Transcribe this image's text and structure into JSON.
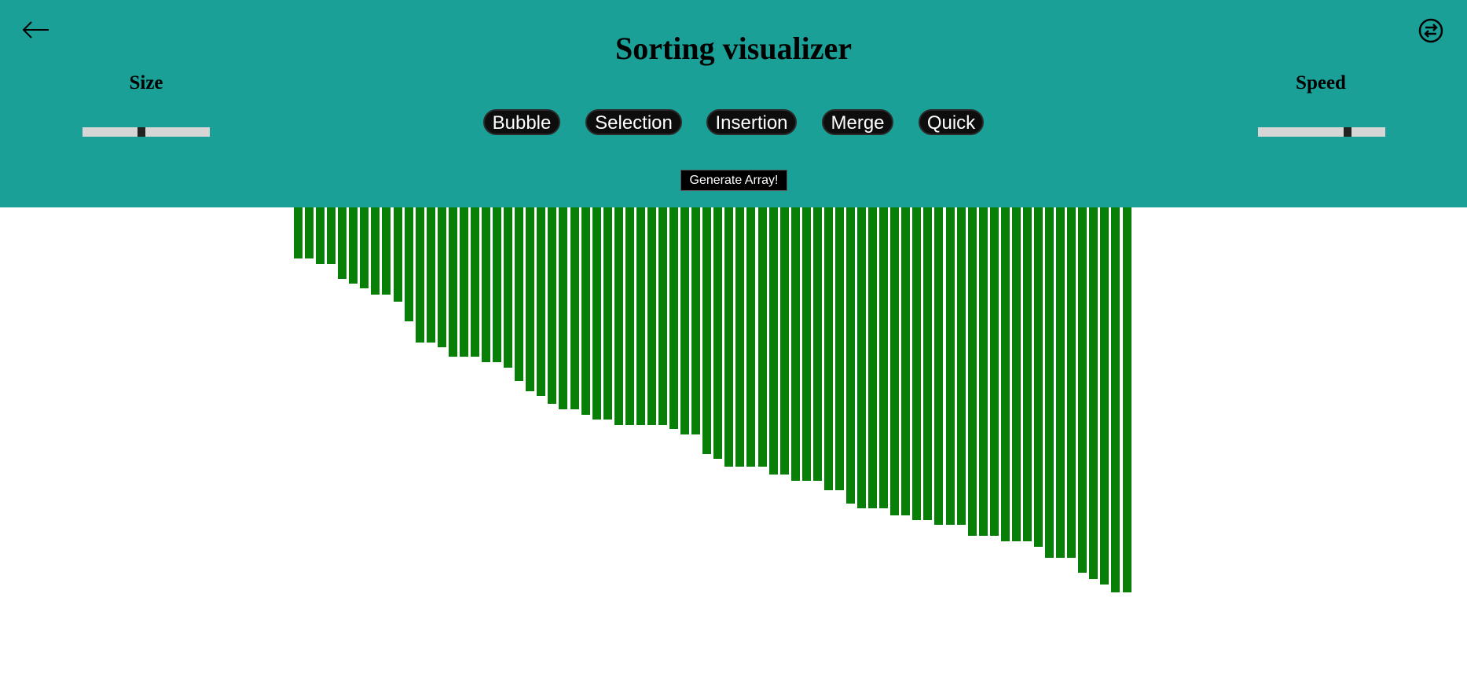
{
  "header": {
    "title": "Sorting visualizer",
    "back_icon": "arrow-left-icon",
    "swap_icon": "swap-arrows-icon",
    "background_color": "#1ba097"
  },
  "controls": {
    "size": {
      "label": "Size",
      "value_fraction": 0.46
    },
    "speed": {
      "label": "Speed",
      "value_fraction": 0.72
    },
    "algorithms": [
      "Bubble",
      "Selection",
      "Insertion",
      "Merge",
      "Quick"
    ],
    "generate_label": "Generate Array!"
  },
  "array": {
    "bar_color": "#088008",
    "values": [
      65,
      65,
      72,
      72,
      91,
      97,
      103,
      111,
      111,
      120,
      145,
      172,
      172,
      178,
      190,
      190,
      190,
      197,
      197,
      204,
      221,
      234,
      240,
      250,
      257,
      257,
      264,
      270,
      270,
      277,
      277,
      277,
      277,
      277,
      282,
      289,
      289,
      314,
      320,
      330,
      330,
      330,
      330,
      340,
      340,
      348,
      348,
      348,
      360,
      360,
      377,
      383,
      383,
      383,
      392,
      392,
      398,
      398,
      404,
      404,
      404,
      418,
      418,
      418,
      425,
      425,
      425,
      432,
      446,
      446,
      446,
      465,
      473,
      480,
      490,
      490
    ]
  }
}
